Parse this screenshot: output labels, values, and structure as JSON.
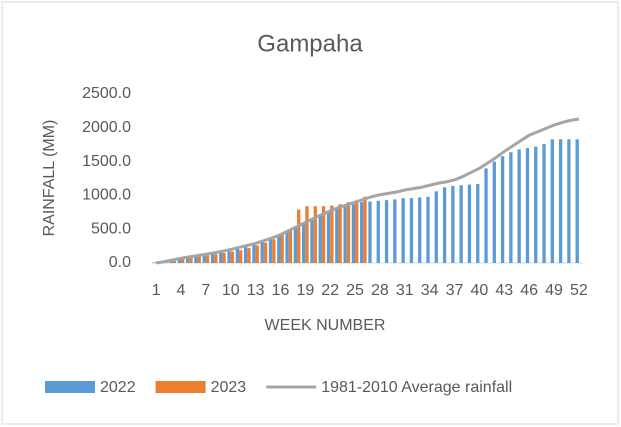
{
  "chart_data": {
    "type": "bar_line",
    "title": "Gampaha",
    "x_label": "WEEK NUMBER",
    "y_label": "RAINFALL (MM)",
    "categories": [
      1,
      null,
      null,
      4,
      null,
      null,
      7,
      null,
      null,
      10,
      null,
      null,
      13,
      null,
      null,
      16,
      null,
      null,
      19,
      null,
      null,
      22,
      null,
      null,
      25,
      null,
      null,
      28,
      null,
      null,
      31,
      null,
      null,
      34,
      null,
      null,
      37,
      null,
      null,
      40,
      null,
      null,
      43,
      null,
      null,
      46,
      null,
      null,
      49,
      null,
      null,
      52
    ],
    "series": [
      {
        "name": "2022",
        "type": "bar",
        "color": "#5b9bd5",
        "values": [
          10,
          30,
          50,
          70,
          90,
          110,
          120,
          140,
          160,
          180,
          210,
          240,
          270,
          310,
          350,
          400,
          450,
          520,
          580,
          640,
          700,
          750,
          800,
          840,
          870,
          900,
          910,
          920,
          930,
          940,
          960,
          960,
          970,
          980,
          1060,
          1120,
          1140,
          1150,
          1160,
          1170,
          1400,
          1500,
          1580,
          1640,
          1680,
          1700,
          1720,
          1760,
          1830,
          1830,
          1830,
          1830
        ]
      },
      {
        "name": "2023",
        "type": "bar",
        "color": "#ed7d31",
        "values": [
          5,
          20,
          40,
          60,
          80,
          100,
          110,
          130,
          150,
          170,
          190,
          220,
          260,
          300,
          350,
          420,
          480,
          790,
          840,
          840,
          840,
          850,
          870,
          900,
          920,
          980,
          null,
          null,
          null,
          null,
          null,
          null,
          null,
          null,
          null,
          null,
          null,
          null,
          null,
          null,
          null,
          null,
          null,
          null,
          null,
          null,
          null,
          null,
          null,
          null,
          null,
          null
        ]
      },
      {
        "name": "1981-2010 Average rainfall",
        "type": "line",
        "color": "#a5a5a5",
        "values": [
          0,
          20,
          45,
          70,
          90,
          110,
          130,
          150,
          175,
          200,
          230,
          260,
          290,
          330,
          370,
          420,
          480,
          540,
          600,
          660,
          720,
          770,
          820,
          860,
          900,
          940,
          980,
          1010,
          1030,
          1050,
          1080,
          1100,
          1120,
          1150,
          1180,
          1200,
          1230,
          1280,
          1340,
          1400,
          1480,
          1560,
          1650,
          1730,
          1810,
          1890,
          1940,
          1990,
          2040,
          2080,
          2110,
          2130
        ]
      }
    ],
    "ylim": [
      0,
      2500
    ],
    "yticks": [
      {
        "value": 0,
        "label": "0.0"
      },
      {
        "value": 500,
        "label": "500.0"
      },
      {
        "value": 1000,
        "label": "1000.0"
      },
      {
        "value": 1500,
        "label": "1500.0"
      },
      {
        "value": 2000,
        "label": "2000.0"
      },
      {
        "value": 2500,
        "label": "2500.0"
      }
    ],
    "legend": "bottom"
  }
}
